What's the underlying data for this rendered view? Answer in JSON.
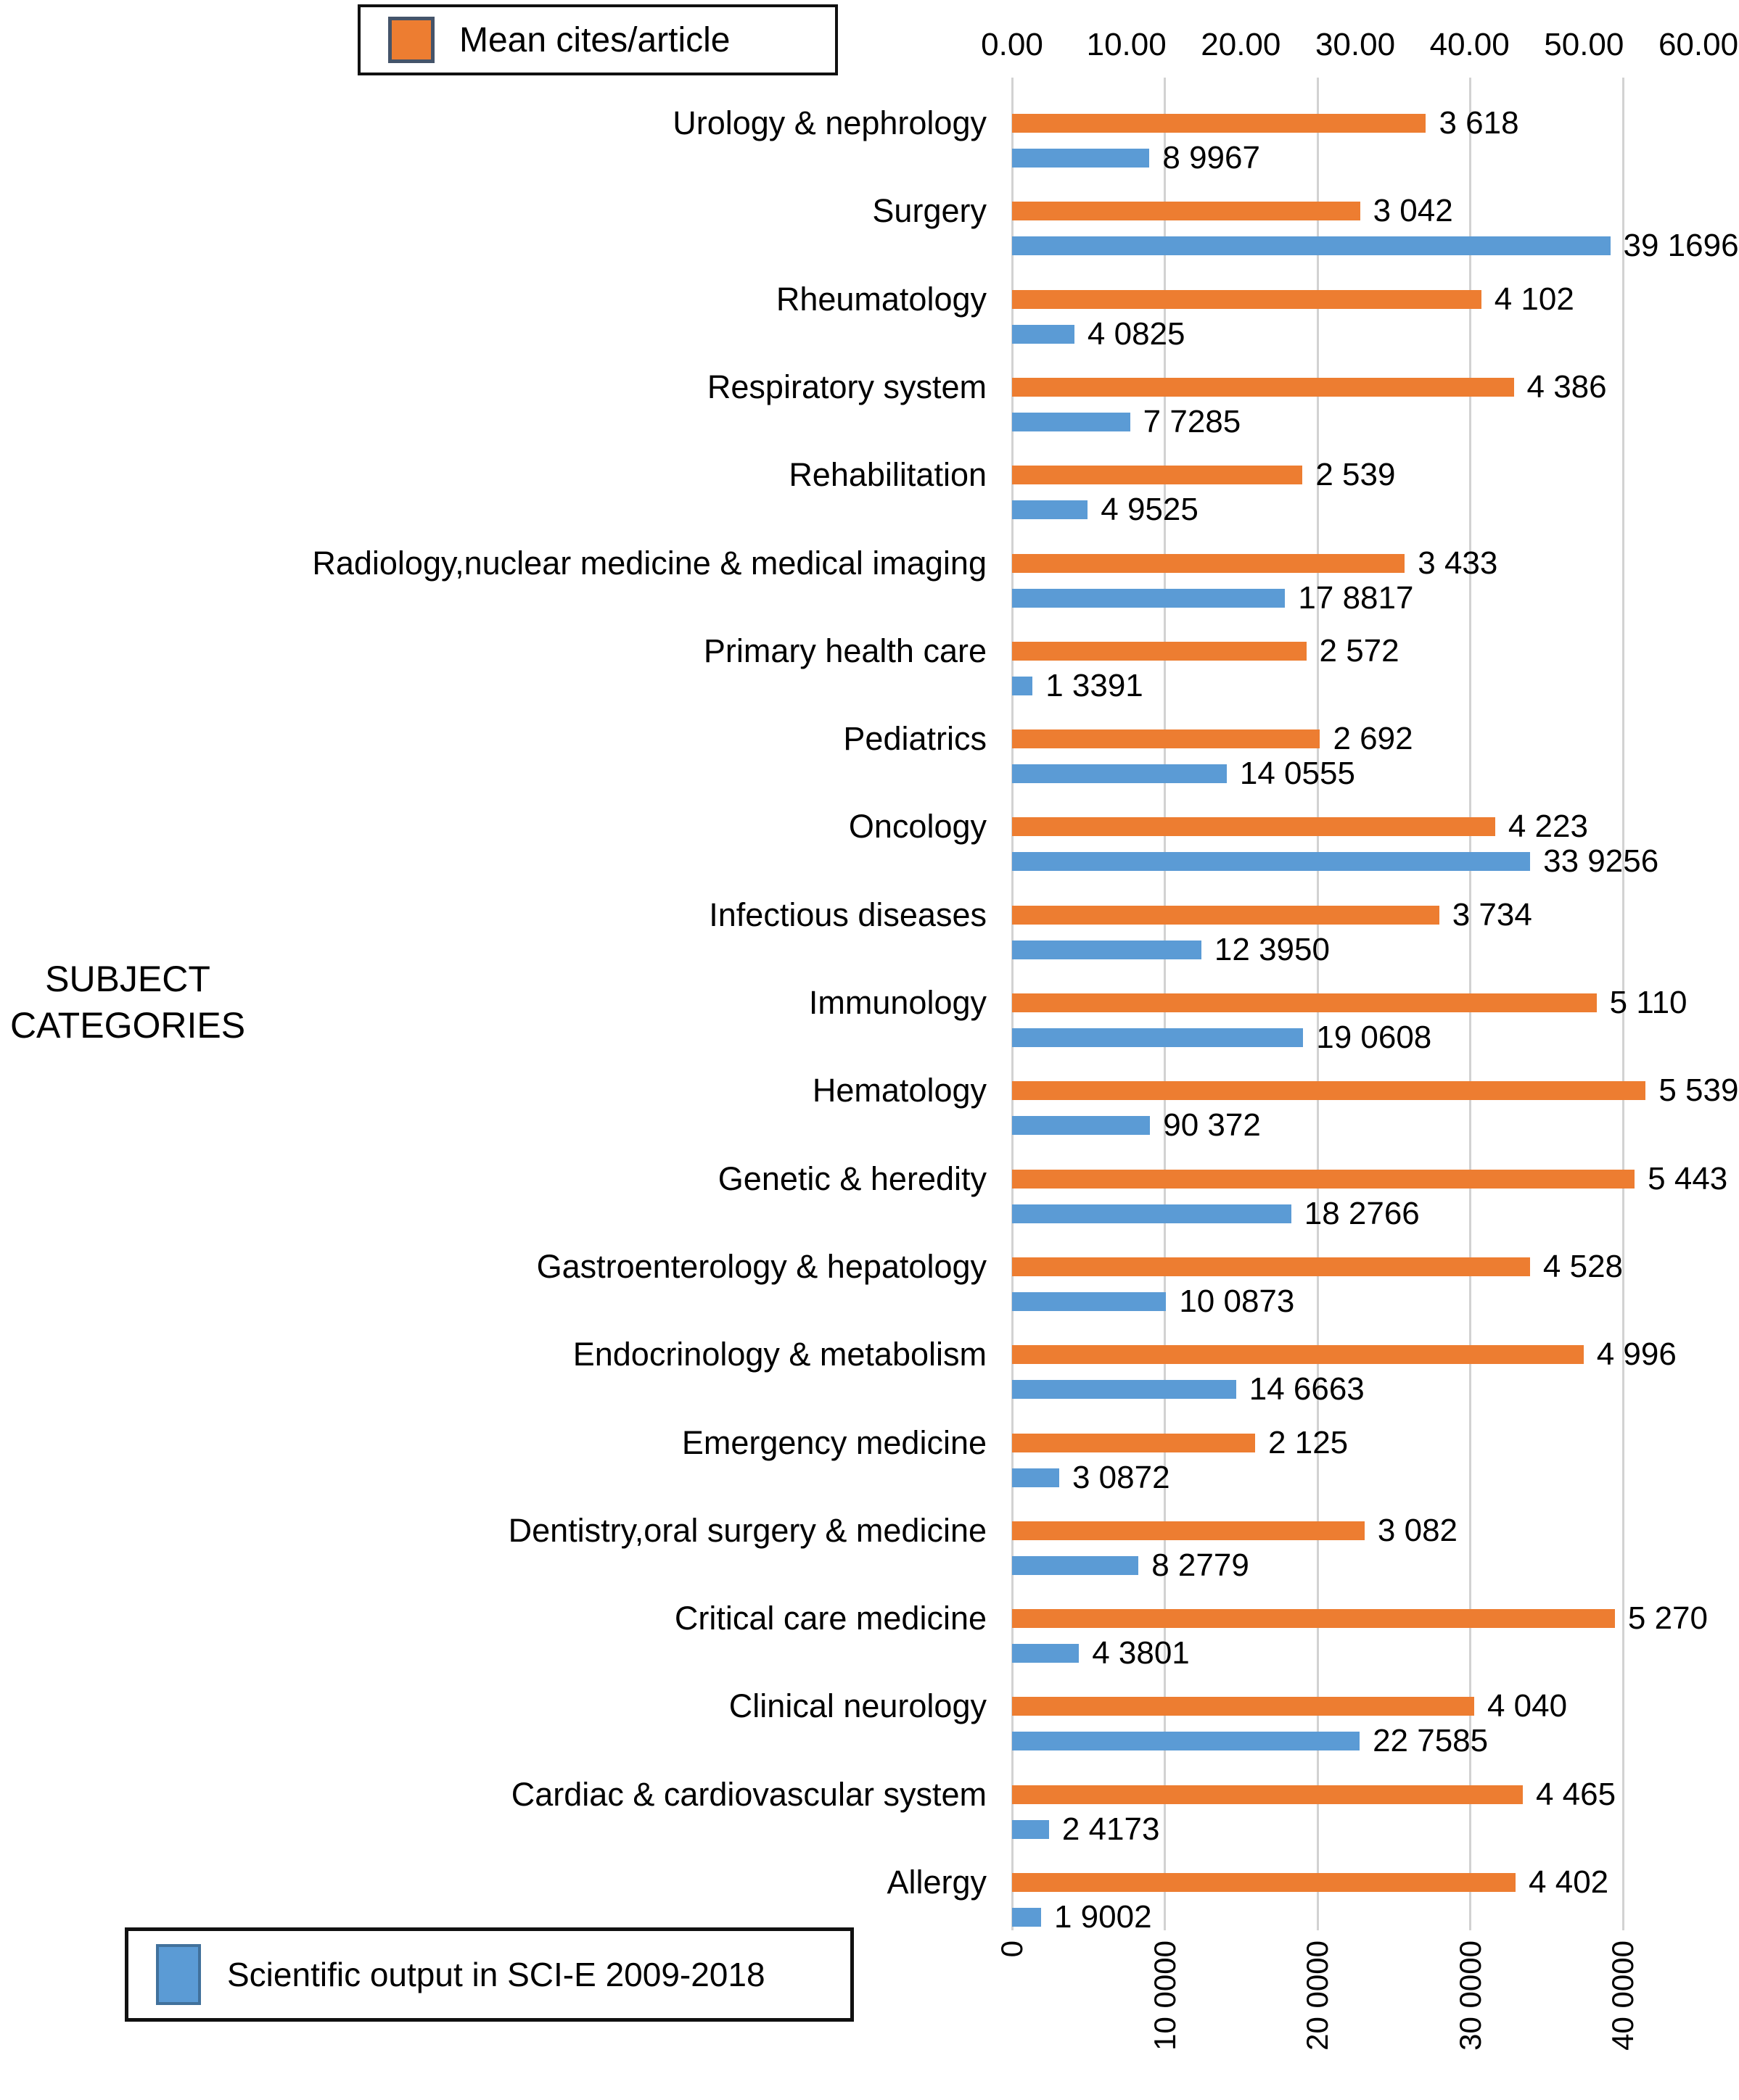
{
  "legend_top": {
    "label": "Mean cites/article",
    "swatch_color": "#ED7D31",
    "swatch_border": "#44546A"
  },
  "legend_bottom": {
    "label": "Scientific output in SCI-E 2009-2018",
    "swatch_color": "#5B9BD5",
    "swatch_border": "#41719C"
  },
  "y_axis_title": "SUBJECT\nCATEGORIES",
  "chart_data": {
    "type": "bar",
    "orientation": "horizontal",
    "title": "",
    "ylabel": "SUBJECT CATEGORIES",
    "grid": true,
    "gridline_color": "#d2d2d2",
    "categories": [
      "Urology & nephrology",
      "Surgery",
      "Rheumatology",
      "Respiratory system",
      "Rehabilitation",
      "Radiology,nuclear medicine & medical imaging",
      "Primary health care",
      "Pediatrics",
      "Oncology",
      "Infectious diseases",
      "Immunology",
      "Hematology",
      "Genetic & heredity",
      "Gastroenterology & hepatology",
      "Endocrinology & metabolism",
      "Emergency medicine",
      "Dentistry,oral surgery & medicine",
      "Critical care medicine",
      "Clinical neurology",
      "Cardiac & cardiovascular system",
      "Allergy"
    ],
    "series": [
      {
        "name": "Mean cites/article",
        "axis": "top",
        "color": "#ED7D31",
        "values": [
          36.18,
          30.42,
          41.02,
          43.86,
          25.39,
          34.33,
          25.72,
          26.92,
          42.23,
          37.34,
          51.1,
          55.39,
          54.43,
          45.28,
          49.96,
          21.25,
          30.82,
          52.7,
          40.4,
          44.65,
          44.02
        ],
        "labels": [
          "3 618",
          "3 042",
          "4 102",
          "4 386",
          "2 539",
          "3 433",
          "2 572",
          "2 692",
          "4 223",
          "3 734",
          "5 110",
          "5 539",
          "5 443",
          "4 528",
          "4 996",
          "2 125",
          "3 082",
          "5 270",
          "4 040",
          "4 465",
          "4 402"
        ]
      },
      {
        "name": "Scientific output in SCI-E 2009-2018",
        "axis": "bottom",
        "color": "#5B9BD5",
        "values": [
          89967,
          391696,
          40825,
          77285,
          49525,
          178817,
          13391,
          140555,
          339256,
          123950,
          190608,
          90372,
          182766,
          100873,
          146663,
          30872,
          82779,
          43801,
          227585,
          24173,
          19002
        ],
        "labels": [
          "8 9967",
          "39 1696",
          "4 0825",
          "7 7285",
          "4 9525",
          "17 8817",
          "1 3391",
          "14 0555",
          "33 9256",
          "12 3950",
          "19 0608",
          "90 372",
          "18 2766",
          "10 0873",
          "14 6663",
          "3 0872",
          "8 2779",
          "4 3801",
          "22 7585",
          "2 4173",
          "1 9002"
        ]
      }
    ],
    "top_axis": {
      "min": 0,
      "max": 60,
      "ticks": [
        "0.00",
        "10.00",
        "20.00",
        "30.00",
        "40.00",
        "50.00",
        "60.00"
      ],
      "position": "top"
    },
    "bottom_axis": {
      "min": 0,
      "max": 400000,
      "ticks": [
        "0",
        "10 0000",
        "20 0000",
        "30 0000",
        "40 0000"
      ],
      "position": "bottom",
      "units_per_gridline": 100000
    },
    "legend_positions": {
      "top_series": "top-left",
      "bottom_series": "bottom-left"
    }
  }
}
